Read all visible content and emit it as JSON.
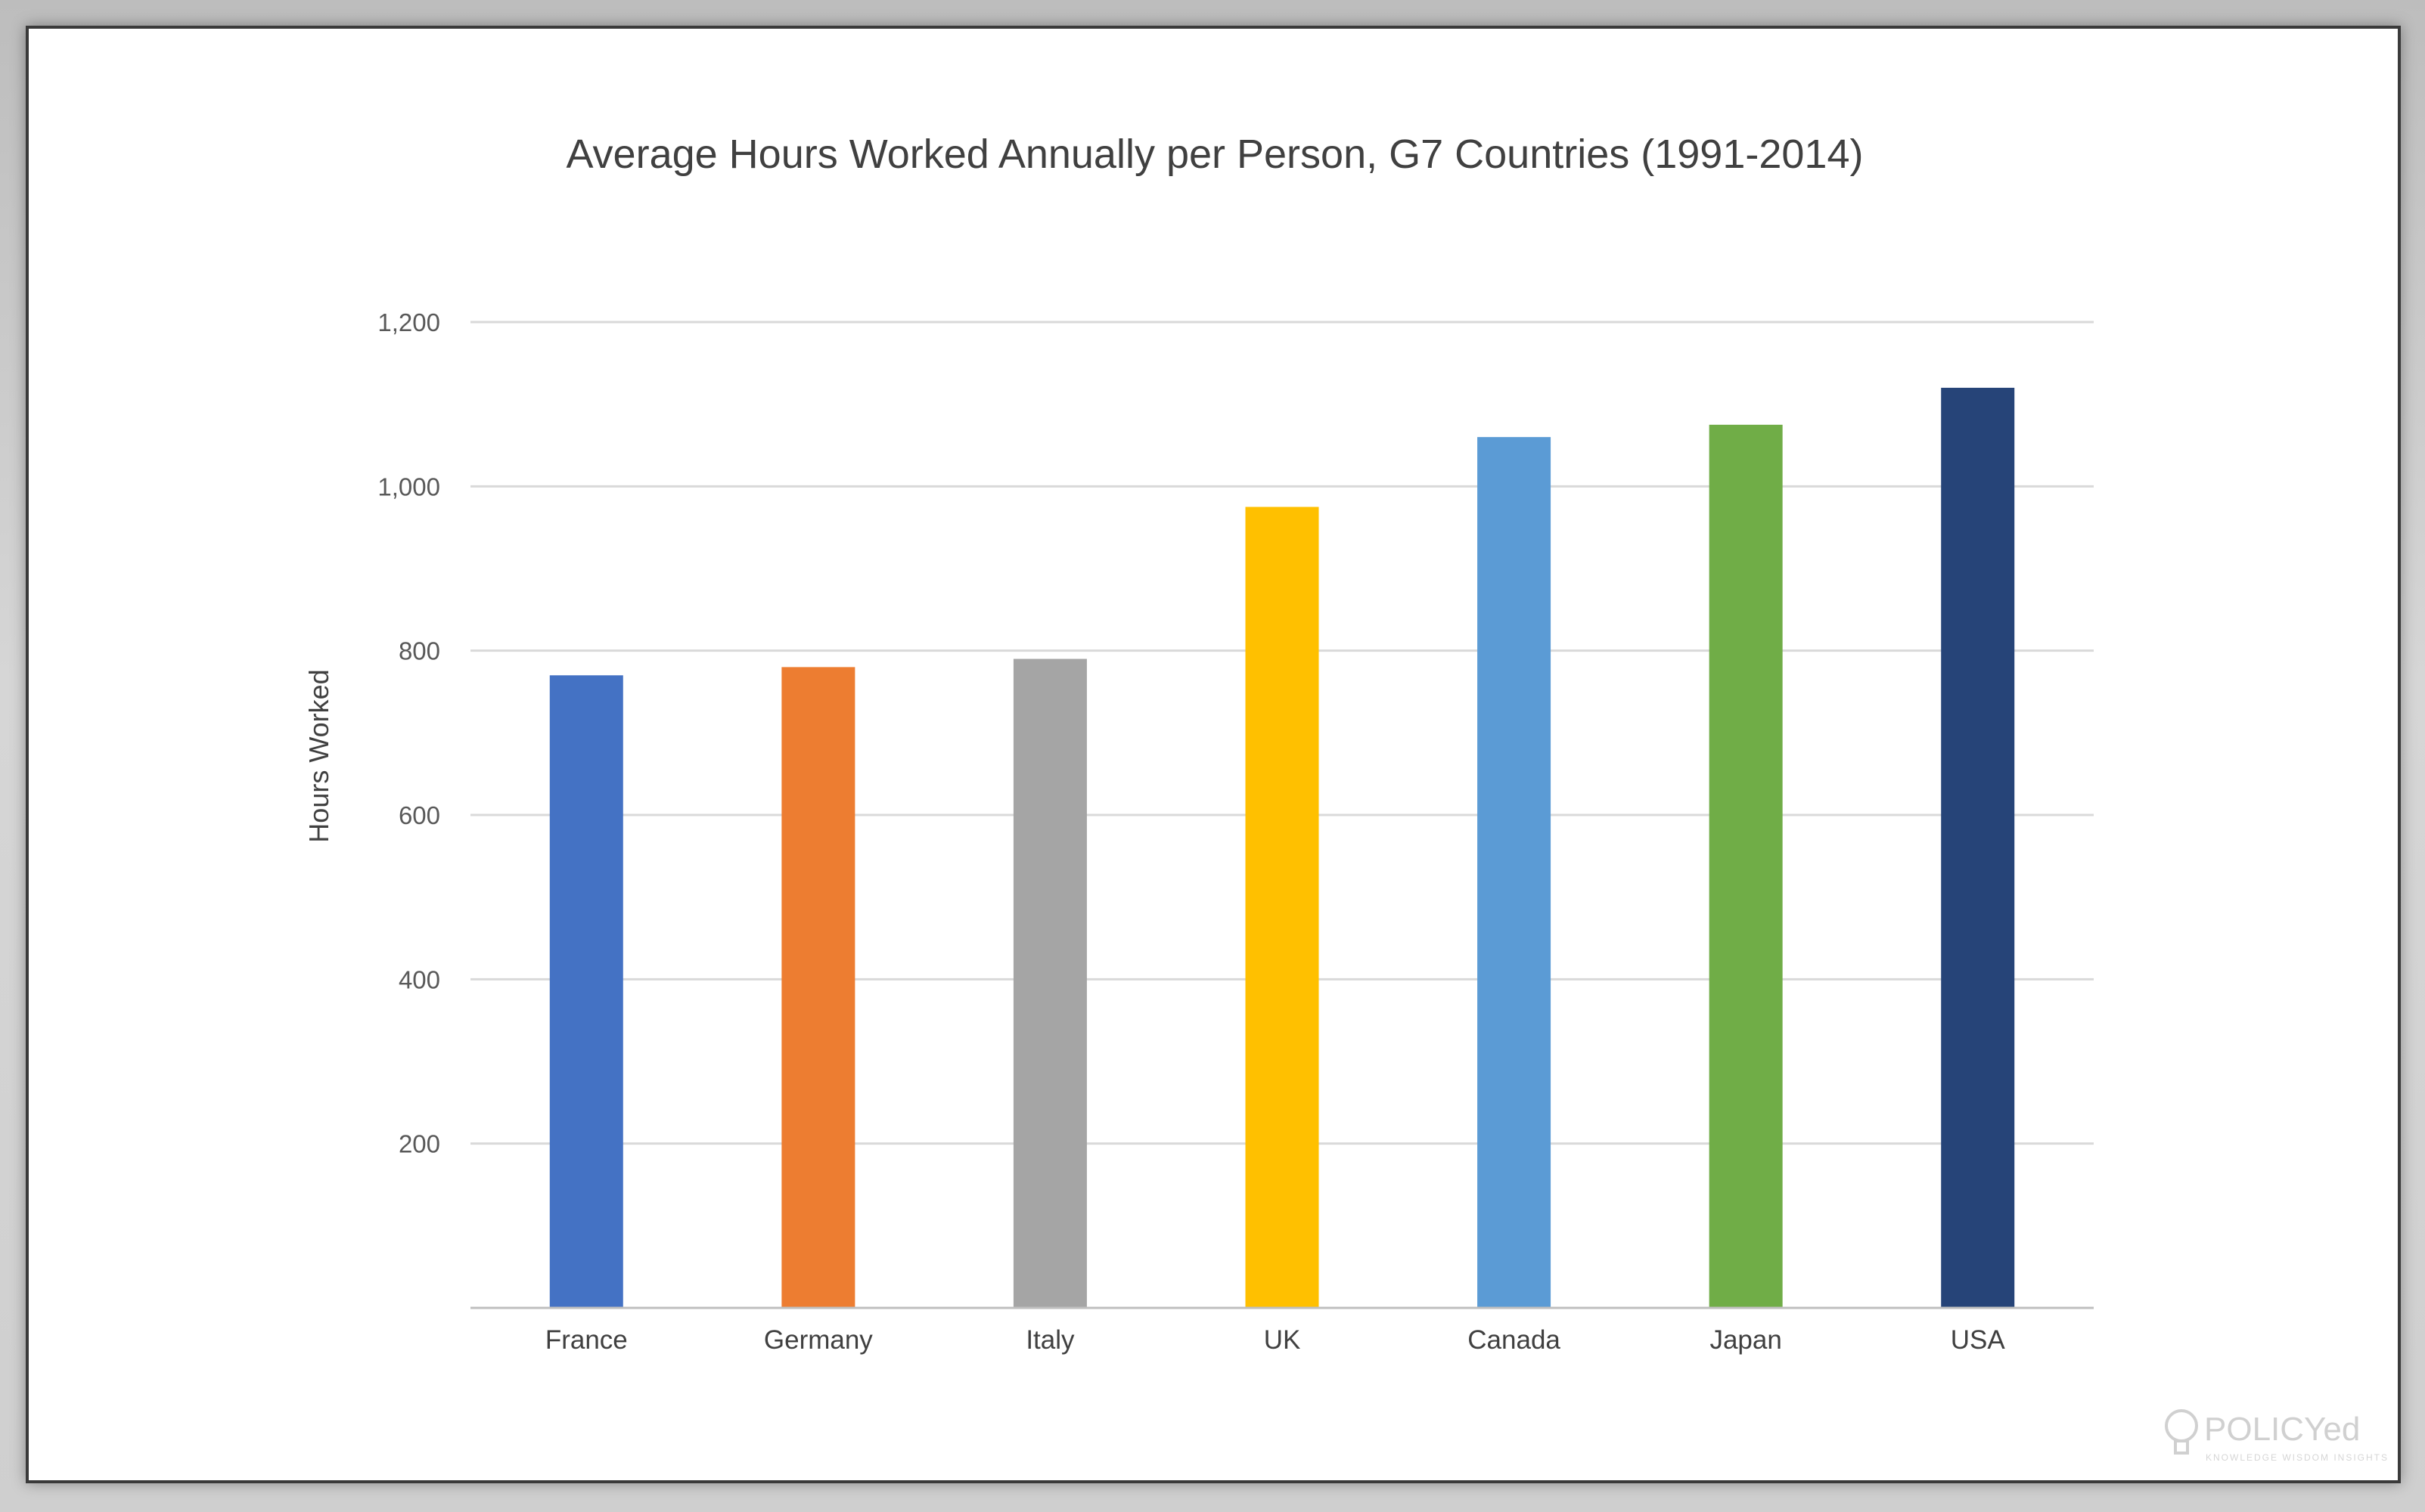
{
  "chart_data": {
    "type": "bar",
    "title": "Average Hours Worked Annually per Person, G7 Countries (1991-2014)",
    "xlabel": "",
    "ylabel": "Hours Worked",
    "categories": [
      "France",
      "Germany",
      "Italy",
      "UK",
      "Canada",
      "Japan",
      "USA"
    ],
    "values": [
      770,
      780,
      790,
      975,
      1060,
      1075,
      1120
    ],
    "colors": [
      "#4472c4",
      "#ed7d31",
      "#a5a5a5",
      "#ffc000",
      "#5b9bd5",
      "#70ad47",
      "#264478"
    ],
    "ylim": [
      0,
      1200
    ],
    "yticks": [
      200,
      400,
      600,
      800,
      1000,
      1200
    ],
    "ytick_labels": [
      "200",
      "400",
      "600",
      "800",
      "1,000",
      "1,200"
    ],
    "grid": true,
    "legend": "none"
  },
  "watermark": {
    "text": "POLICYed",
    "tagline": "KNOWLEDGE WISDOM INSIGHTS",
    "icon": "lightbulb-icon"
  }
}
